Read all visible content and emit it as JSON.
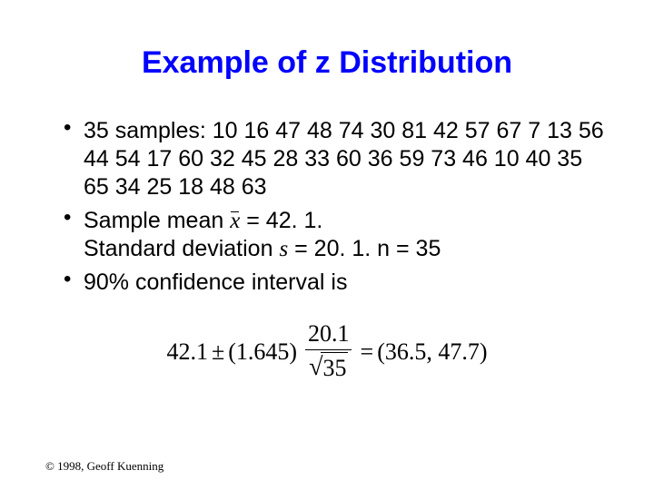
{
  "title": {
    "text": "Example of z Distribution",
    "color": "#0000ff",
    "fontsize": 34
  },
  "body_fontsize": 25,
  "bullets": [
    {
      "prefix": "35 samples: ",
      "samples": "10 16 47 48 74 30 81 42 57 67 7 13 56 44 54 17 60 32 45 28 33 60 36 59 73 46 10 40 35 65 34 25 18 48 63"
    },
    {
      "mean_label_prefix": "Sample mean ",
      "mean_value": " = 42. 1.",
      "stddev_line_prefix": "Standard deviation  ",
      "stddev_symbol": "s",
      "stddev_value": " = 20. 1. n = 35"
    },
    {
      "ci_text": "90% confidence interval is"
    }
  ],
  "equation": {
    "fontsize": 26,
    "lhs_mean": "42.1",
    "pm": "±",
    "z": "(1.645)",
    "frac_num": "20.1",
    "sqrt_arg": "35",
    "eq": "=",
    "rhs": "(36.5, 47.7)"
  },
  "copyright": {
    "text": "© 1998, Geoff Kuenning",
    "fontsize": 13
  }
}
